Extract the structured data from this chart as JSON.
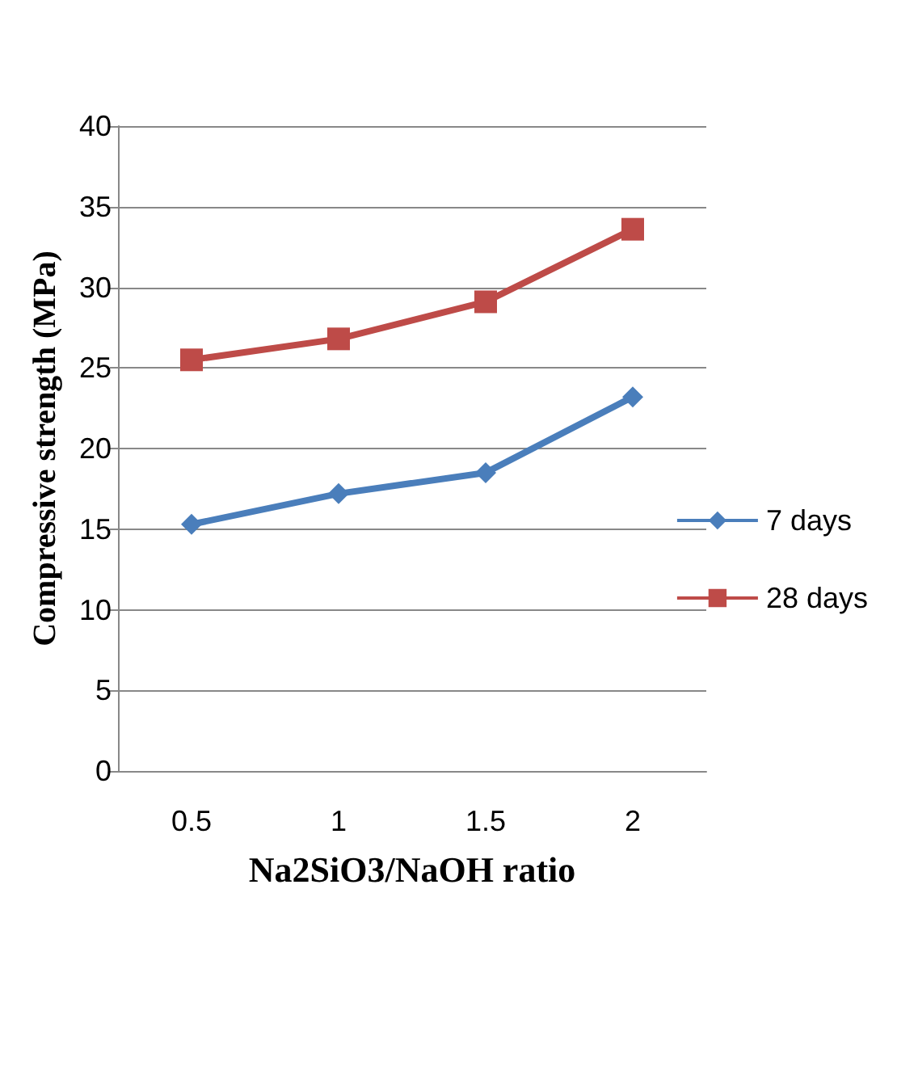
{
  "chart_data": {
    "type": "line",
    "xlabel": "Na2SiO3/NaOH ratio",
    "ylabel": "Compressive strength (MPa)",
    "categories": [
      "0.5",
      "1",
      "1.5",
      "2"
    ],
    "series": [
      {
        "name": "7 days",
        "color": "#4a7ebb",
        "marker": "diamond",
        "values": [
          15.3,
          17.2,
          18.5,
          23.2
        ]
      },
      {
        "name": "28 days",
        "color": "#be4b48",
        "marker": "square",
        "values": [
          25.5,
          26.8,
          29.1,
          33.6
        ]
      }
    ],
    "ylim": [
      0,
      40
    ],
    "yticks": [
      0,
      5,
      10,
      15,
      20,
      25,
      30,
      35,
      40
    ],
    "grid": "y",
    "legend": "right"
  }
}
